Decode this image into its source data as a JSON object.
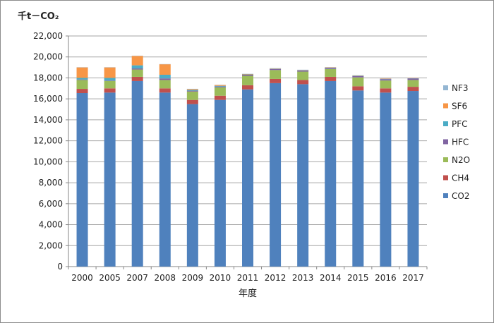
{
  "chart_data": {
    "type": "bar",
    "stacked": true,
    "unit_label": "千t－CO₂",
    "xlabel": "年度",
    "ylabel": "",
    "ylim": [
      0,
      22000
    ],
    "yticks": [
      0,
      2000,
      4000,
      6000,
      8000,
      10000,
      12000,
      14000,
      16000,
      18000,
      20000,
      22000
    ],
    "ytick_labels": [
      "0",
      "2,000",
      "4,000",
      "6,000",
      "8,000",
      "10,000",
      "12,000",
      "14,000",
      "16,000",
      "18,000",
      "20,000",
      "22,000"
    ],
    "grid": true,
    "legend_position": "right",
    "categories": [
      "2000",
      "2005",
      "2007",
      "2008",
      "2009",
      "2010",
      "2011",
      "2012",
      "2013",
      "2014",
      "2015",
      "2016",
      "2017"
    ],
    "series": [
      {
        "name": "CO2",
        "color": "#4F81BD",
        "values": [
          16550,
          16600,
          17700,
          16600,
          15500,
          15900,
          16900,
          17500,
          17400,
          17700,
          16800,
          16600,
          16750
        ]
      },
      {
        "name": "CH4",
        "color": "#C0504D",
        "values": [
          400,
          400,
          400,
          400,
          400,
          400,
          400,
          400,
          400,
          400,
          400,
          400,
          400
        ]
      },
      {
        "name": "N2O",
        "color": "#9BBB59",
        "values": [
          850,
          700,
          700,
          800,
          800,
          800,
          900,
          850,
          800,
          750,
          850,
          750,
          650
        ]
      },
      {
        "name": "HFC",
        "color": "#8064A2",
        "values": [
          50,
          50,
          100,
          150,
          80,
          80,
          100,
          100,
          100,
          100,
          120,
          130,
          150
        ]
      },
      {
        "name": "PFC",
        "color": "#4BACC6",
        "values": [
          150,
          250,
          300,
          350,
          80,
          60,
          30,
          30,
          30,
          30,
          30,
          20,
          20
        ]
      },
      {
        "name": "SF6",
        "color": "#F79646",
        "values": [
          1000,
          1000,
          900,
          1000,
          80,
          80,
          40,
          30,
          30,
          30,
          30,
          30,
          30
        ]
      },
      {
        "name": "NF3",
        "color": "#94B6D2",
        "values": [
          20,
          20,
          20,
          20,
          20,
          20,
          20,
          20,
          20,
          20,
          20,
          20,
          20
        ]
      }
    ]
  }
}
